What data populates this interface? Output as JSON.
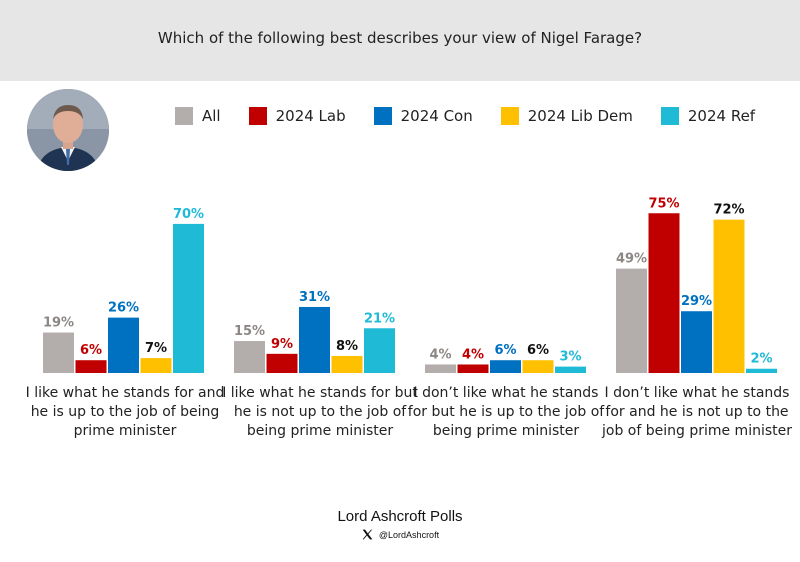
{
  "header": {
    "title": "Which of the following best describes your view of Nigel Farage?"
  },
  "footer": {
    "brand": "Lord Ashcroft Polls",
    "handle": "@LordAshcroft",
    "icon": "x-logo-icon"
  },
  "colors": {
    "header_bg": "#e6e6e6",
    "series": [
      "#b3adab",
      "#c00000",
      "#0070c0",
      "#ffc000",
      "#1fbad6"
    ]
  },
  "chart_data": {
    "type": "bar",
    "title": "Which of the following best describes your view of Nigel Farage?",
    "legend_position": "top",
    "grid": false,
    "ylim": [
      0,
      80
    ],
    "categories": [
      "I like what he stands for and he is up to the job of being prime minister",
      "I like what he stands for but he is not up to the job of being prime minister",
      "I don’t like what he stands for but he is up to the job of being prime minister",
      "I don’t like what he stands for and he is not up to the job of being prime minister"
    ],
    "series": [
      {
        "name": "All",
        "color": "#b3adab",
        "label_color": "#8c8785",
        "values": [
          19,
          15,
          4,
          49
        ]
      },
      {
        "name": "2024 Lab",
        "color": "#c00000",
        "label_color": "#c00000",
        "values": [
          6,
          9,
          4,
          75
        ]
      },
      {
        "name": "2024 Con",
        "color": "#0070c0",
        "label_color": "#0070c0",
        "values": [
          26,
          31,
          6,
          29
        ]
      },
      {
        "name": "2024 Lib Dem",
        "color": "#ffc000",
        "label_color": "#111111",
        "values": [
          7,
          8,
          6,
          72
        ]
      },
      {
        "name": "2024 Ref",
        "color": "#1fbad6",
        "label_color": "#1fbad6",
        "values": [
          70,
          21,
          3,
          2
        ]
      }
    ]
  }
}
